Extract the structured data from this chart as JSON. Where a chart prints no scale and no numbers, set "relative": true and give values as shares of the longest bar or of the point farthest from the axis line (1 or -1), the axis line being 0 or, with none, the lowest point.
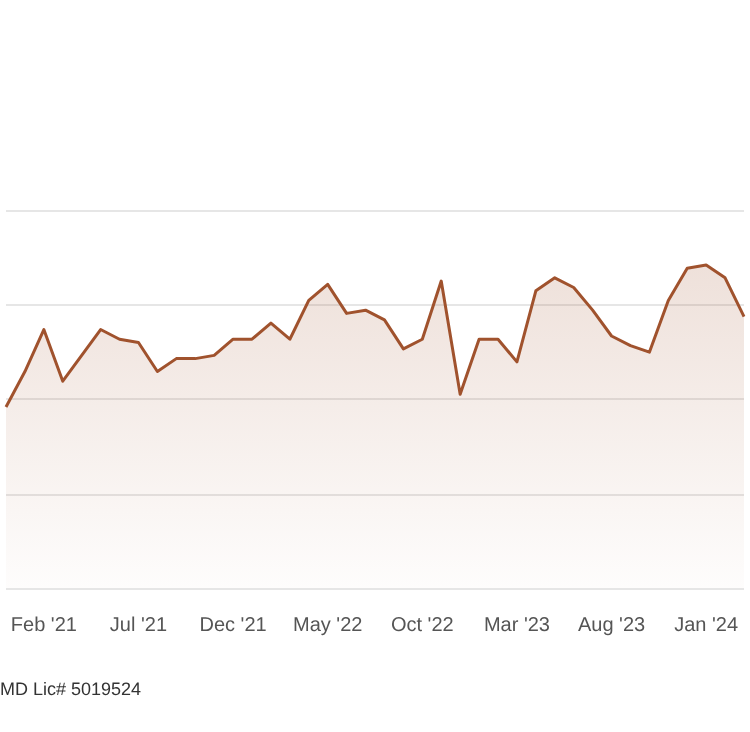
{
  "chart_data": {
    "type": "area",
    "relative": true,
    "grid": "y",
    "marker": "none",
    "line_style": "solid",
    "categories": [
      null,
      null,
      "Feb '21",
      null,
      null,
      null,
      null,
      "Jul '21",
      null,
      null,
      null,
      null,
      "Dec '21",
      null,
      null,
      null,
      null,
      "May '22",
      null,
      null,
      null,
      null,
      "Oct '22",
      null,
      null,
      null,
      null,
      "Mar '23",
      null,
      null,
      null,
      null,
      "Aug '23",
      null,
      null,
      null,
      null,
      "Jan '24",
      null,
      null
    ],
    "series": [
      {
        "color": "#a0522d",
        "values": [
          0.56,
          0.67,
          0.8,
          0.64,
          0.72,
          0.8,
          0.77,
          0.76,
          0.67,
          0.71,
          0.71,
          0.72,
          0.77,
          0.77,
          0.82,
          0.77,
          0.89,
          0.94,
          0.85,
          0.86,
          0.83,
          0.74,
          0.77,
          0.95,
          0.6,
          0.77,
          0.77,
          0.7,
          0.92,
          0.96,
          0.93,
          0.86,
          0.78,
          0.75,
          0.73,
          0.89,
          0.99,
          1,
          0.96,
          0.84
        ]
      }
    ],
    "annotations": [
      "MD Lic# 5019524"
    ]
  }
}
